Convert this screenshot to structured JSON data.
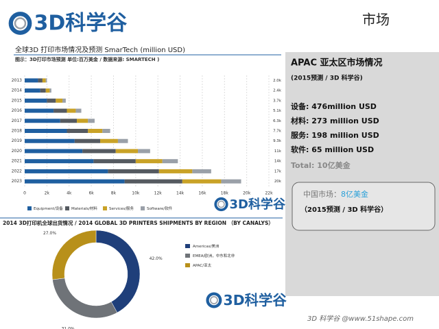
{
  "header": {
    "logo": "3D科学谷",
    "title": "市场"
  },
  "chart_data": [
    {
      "type": "bar",
      "orientation": "horizontal",
      "stacked": true,
      "title": "全球3D 打印市场情况及预测 SmarTech (million USD)",
      "subtitle": "图示：3D打印市场预测 单位:百万美金 / 数据来源: SMARTECH )",
      "categories": [
        "2013",
        "2014",
        "2015",
        "2016",
        "2017",
        "2018",
        "2019",
        "2020",
        "2021",
        "2022",
        "2023"
      ],
      "series": [
        {
          "name": "Equipment/设备",
          "color": "#1f5fa0",
          "values": [
            1200,
            1400,
            2000,
            2600,
            3200,
            3800,
            4500,
            5200,
            6200,
            7500,
            9000
          ]
        },
        {
          "name": "Materials/材料",
          "color": "#555a60",
          "values": [
            400,
            500,
            800,
            1200,
            1500,
            1900,
            2300,
            3000,
            3800,
            4600,
            5200
          ]
        },
        {
          "name": "Services/服务",
          "color": "#c9a227",
          "values": [
            300,
            350,
            600,
            800,
            1000,
            1300,
            1600,
            2000,
            2400,
            3000,
            3500
          ]
        },
        {
          "name": "Software/软件",
          "color": "#9aa0a8",
          "values": [
            100,
            150,
            300,
            500,
            600,
            700,
            900,
            1100,
            1400,
            1700,
            1800
          ]
        }
      ],
      "totals": [
        "2.0k",
        "2.4k",
        "3.7k",
        "5.1k",
        "6.3k",
        "7.7k",
        "9.3k",
        "11k",
        "14k",
        "17k",
        "20k"
      ],
      "xlim": [
        0,
        22000
      ],
      "xticks": [
        0,
        {
          "value": 2000,
          "label": "2k"
        },
        {
          "value": 4000,
          "label": "4k"
        },
        {
          "value": 6000,
          "label": "6k"
        },
        {
          "value": 8000,
          "label": "8k"
        },
        {
          "value": 10000,
          "label": "10k"
        },
        {
          "value": 12000,
          "label": "12k"
        },
        {
          "value": 14000,
          "label": "14k"
        },
        {
          "value": 16000,
          "label": "16k"
        },
        {
          "value": 18000,
          "label": "18k"
        },
        {
          "value": 20000,
          "label": "20k"
        },
        {
          "value": 22000,
          "label": "22k"
        }
      ],
      "grid": true,
      "legend": "bottom"
    },
    {
      "type": "pie",
      "donut": true,
      "title": "2014 3D打印机全球出货情况 / 2014 GLOBAL 3D PRINTERS SHIPMENTS BY REGION （BY CANALYS）",
      "categories": [
        "Americas/美洲",
        "EMEA/欧洲，中东和北非",
        "APAC/亚太"
      ],
      "values": [
        42.0,
        31.0,
        27.0
      ],
      "value_labels": [
        "42.0%",
        "31.0%",
        "27.0%"
      ],
      "colors": [
        "#1f3f7a",
        "#6f7378",
        "#b8901a"
      ],
      "legend": "right"
    }
  ],
  "panel": {
    "title": "APAC 亚太区市场情况",
    "subtitle": "(2015预测 / 3D 科学谷)",
    "lines": [
      "设备: 476million USD",
      "材料: 273 million USD",
      "服务: 198 million USD",
      "软件: 65 million USD"
    ],
    "total": "Total: 10亿美金",
    "china": {
      "label": "中国市场：",
      "value": "8亿美金",
      "note": "（2015预测 / 3D 科学谷）"
    }
  },
  "footer": "3D 科学谷 @www.51shape.com"
}
